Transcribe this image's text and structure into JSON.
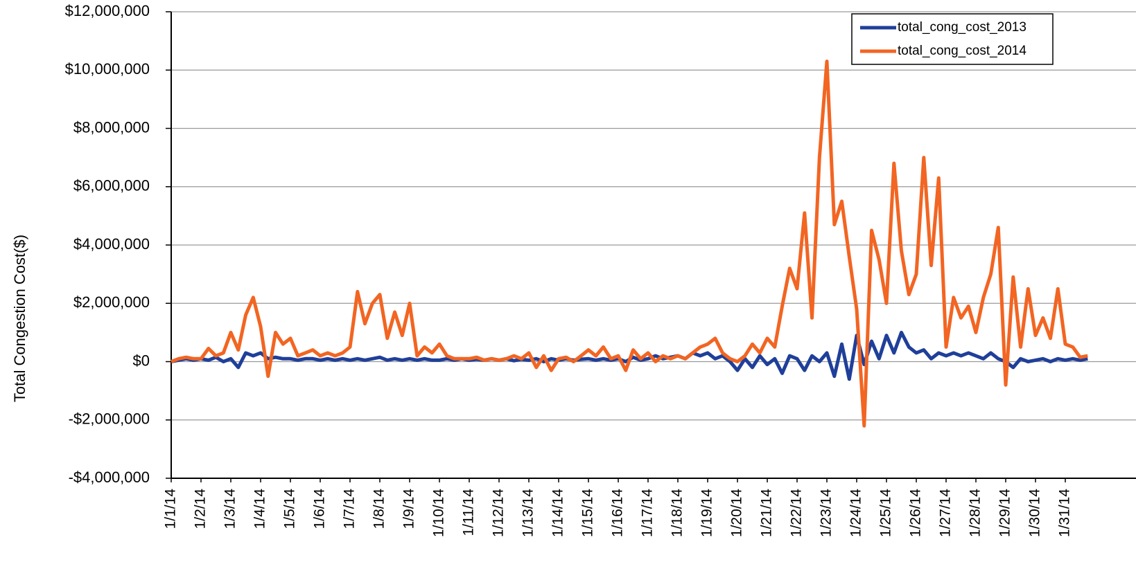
{
  "chart_data": {
    "type": "line",
    "y_label": "Total Congestion Cost($)",
    "categories": [
      "1/1/14",
      null,
      null,
      null,
      "1/2/14",
      null,
      null,
      null,
      "1/3/14",
      null,
      null,
      null,
      "1/4/14",
      null,
      null,
      null,
      "1/5/14",
      null,
      null,
      null,
      "1/6/14",
      null,
      null,
      null,
      "1/7/14",
      null,
      null,
      null,
      "1/8/14",
      null,
      null,
      null,
      "1/9/14",
      null,
      null,
      null,
      "1/10/14",
      null,
      null,
      null,
      "1/11/14",
      null,
      null,
      null,
      "1/12/14",
      null,
      null,
      null,
      "1/13/14",
      null,
      null,
      null,
      "1/14/14",
      null,
      null,
      null,
      "1/15/14",
      null,
      null,
      null,
      "1/16/14",
      null,
      null,
      null,
      "1/17/14",
      null,
      null,
      null,
      "1/18/14",
      null,
      null,
      null,
      "1/19/14",
      null,
      null,
      null,
      "1/20/14",
      null,
      null,
      null,
      "1/21/14",
      null,
      null,
      null,
      "1/22/14",
      null,
      null,
      null,
      "1/23/14",
      null,
      null,
      null,
      "1/24/14",
      null,
      null,
      null,
      "1/25/14",
      null,
      null,
      null,
      "1/26/14",
      null,
      null,
      null,
      "1/27/14",
      null,
      null,
      null,
      "1/28/14",
      null,
      null,
      null,
      "1/29/14",
      null,
      null,
      null,
      "1/30/14",
      null,
      null,
      null,
      "1/31/14",
      null,
      null,
      null
    ],
    "series": [
      {
        "name": "total_cong_cost_2013",
        "color": "#1f3f99",
        "values": [
          0,
          50000,
          100000,
          50000,
          100000,
          50000,
          150000,
          0,
          100000,
          -200000,
          300000,
          200000,
          300000,
          100000,
          150000,
          100000,
          100000,
          50000,
          100000,
          100000,
          50000,
          100000,
          50000,
          100000,
          50000,
          100000,
          50000,
          100000,
          150000,
          50000,
          100000,
          50000,
          100000,
          50000,
          100000,
          50000,
          50000,
          100000,
          50000,
          100000,
          50000,
          80000,
          50000,
          100000,
          50000,
          100000,
          30000,
          80000,
          50000,
          100000,
          0,
          100000,
          50000,
          100000,
          50000,
          80000,
          100000,
          50000,
          100000,
          50000,
          100000,
          0,
          150000,
          50000,
          100000,
          200000,
          100000,
          150000,
          200000,
          100000,
          300000,
          200000,
          300000,
          100000,
          200000,
          0,
          -300000,
          100000,
          -200000,
          200000,
          -100000,
          100000,
          -400000,
          200000,
          100000,
          -300000,
          200000,
          0,
          300000,
          -500000,
          600000,
          -600000,
          900000,
          -100000,
          700000,
          100000,
          900000,
          300000,
          1000000,
          500000,
          300000,
          400000,
          100000,
          300000,
          200000,
          300000,
          200000,
          300000,
          200000,
          100000,
          300000,
          100000,
          0,
          -200000,
          100000,
          0,
          50000,
          100000,
          0,
          100000,
          50000,
          100000,
          50000,
          100000
        ]
      },
      {
        "name": "total_cong_cost_2014",
        "color": "#f26522",
        "values": [
          0,
          100000,
          150000,
          100000,
          100000,
          450000,
          200000,
          300000,
          1000000,
          400000,
          1600000,
          2200000,
          1200000,
          -500000,
          1000000,
          600000,
          800000,
          200000,
          300000,
          400000,
          200000,
          300000,
          200000,
          300000,
          500000,
          2400000,
          1300000,
          2000000,
          2300000,
          800000,
          1700000,
          900000,
          2000000,
          200000,
          500000,
          300000,
          600000,
          200000,
          100000,
          100000,
          100000,
          150000,
          50000,
          100000,
          50000,
          100000,
          200000,
          100000,
          300000,
          -200000,
          200000,
          -300000,
          100000,
          150000,
          0,
          200000,
          400000,
          200000,
          500000,
          100000,
          200000,
          -300000,
          400000,
          100000,
          300000,
          0,
          200000,
          100000,
          200000,
          100000,
          300000,
          500000,
          600000,
          800000,
          300000,
          100000,
          0,
          200000,
          600000,
          300000,
          800000,
          500000,
          1900000,
          3200000,
          2500000,
          5100000,
          1500000,
          7000000,
          10300000,
          4700000,
          5500000,
          3600000,
          1800000,
          -2200000,
          4500000,
          3500000,
          2000000,
          6800000,
          3800000,
          2300000,
          3000000,
          7000000,
          3300000,
          6300000,
          500000,
          2200000,
          1500000,
          1900000,
          1000000,
          2200000,
          3000000,
          4600000,
          -800000,
          2900000,
          500000,
          2500000,
          900000,
          1500000,
          800000,
          2500000,
          600000,
          500000,
          150000,
          200000
        ]
      }
    ],
    "ylim": [
      -4000000,
      12000000
    ],
    "yticks": [
      {
        "value": -4000000,
        "label": "-$4,000,000"
      },
      {
        "value": -2000000,
        "label": "-$2,000,000"
      },
      {
        "value": 0,
        "label": "$0"
      },
      {
        "value": 2000000,
        "label": "$2,000,000"
      },
      {
        "value": 4000000,
        "label": "$4,000,000"
      },
      {
        "value": 6000000,
        "label": "$6,000,000"
      },
      {
        "value": 8000000,
        "label": "$8,000,000"
      },
      {
        "value": 10000000,
        "label": "$10,000,000"
      },
      {
        "value": 12000000,
        "label": "$12,000,000"
      }
    ],
    "grid": true,
    "legend": "upper right"
  }
}
